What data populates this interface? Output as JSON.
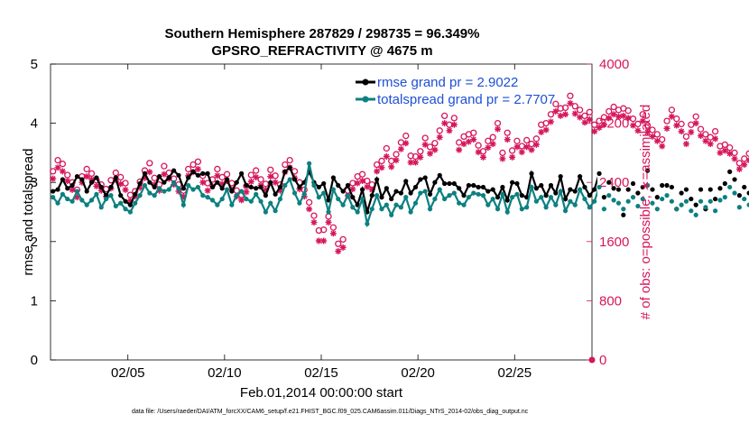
{
  "title_line1": "Southern Hemisphere 287829 / 298735 = 96.349%",
  "title_line2": "GPSRO_REFRACTIVITY @ 4675 m",
  "xlabel": "Feb.01,2014 00:00:00 start",
  "ylabel_left": "rmse and totalspread",
  "ylabel_right": "# of obs: o=possible; ∗=assimilated",
  "footnote": "data file: /Users/raeder/DAI/ATM_forcXX/CAM6_setup/f.e21.FHIST_BGC.f09_025.CAM6assim.011/Diags_NTrS_2014-02/obs_diag_output.nc",
  "colors": {
    "rmse": "#000000",
    "spread": "#0d8080",
    "obs": "#d6165b",
    "legend_text": "#1f4fd6"
  },
  "chart_data": {
    "type": "line",
    "x_unit": "day of Feb 2014",
    "xlim": [
      1.0,
      29.0
    ],
    "x_ticks": [
      5,
      10,
      15,
      20,
      25
    ],
    "x_tick_labels": [
      "02/05",
      "02/10",
      "02/15",
      "02/20",
      "02/25"
    ],
    "ylim_left": [
      0,
      5
    ],
    "y_ticks_left": [
      "0",
      "1",
      "2",
      "3",
      "4",
      "5"
    ],
    "ylim_right": [
      0,
      4000
    ],
    "y_ticks_right": [
      "0",
      "800",
      "1600",
      "2400",
      "3200",
      "4000"
    ],
    "legend": [
      "rmse grand pr = 2.9022",
      "totalspread grand pr = 2.7707"
    ],
    "legend_position": "top-right",
    "series": [
      {
        "name": "rmse grand pr = 2.9022",
        "axis": "left",
        "x_start": 1.125,
        "x_step": 0.25,
        "values": [
          2.85,
          2.88,
          3.05,
          2.9,
          2.95,
          3.1,
          3.05,
          2.85,
          3.0,
          3.08,
          2.92,
          2.78,
          2.92,
          3.08,
          2.78,
          2.68,
          2.62,
          2.8,
          2.98,
          3.15,
          3.0,
          2.92,
          3.1,
          3.0,
          3.08,
          3.2,
          3.12,
          2.9,
          3.08,
          3.18,
          3.12,
          3.15,
          3.15,
          2.92,
          3.0,
          2.9,
          3.05,
          2.85,
          3.0,
          3.15,
          2.95,
          2.92,
          2.9,
          2.92,
          2.78,
          3.0,
          2.8,
          2.92,
          3.18,
          3.25,
          3.05,
          2.92,
          3.0,
          3.18,
          3.0,
          2.92,
          2.98,
          2.7,
          3.08,
          2.95,
          2.85,
          2.95,
          2.75,
          2.62,
          2.88,
          2.5,
          2.78,
          3.05,
          2.75,
          2.9,
          2.72,
          2.85,
          2.82,
          3.02,
          2.82,
          2.92,
          3.05,
          3.08,
          2.8,
          3.0,
          3.12,
          2.98,
          2.98,
          2.98,
          2.9,
          2.78,
          2.95,
          2.95,
          2.92,
          2.92,
          2.85,
          2.88,
          2.75,
          2.92,
          2.7,
          3.0,
          2.98,
          2.78,
          2.75,
          3.15,
          2.9,
          2.95,
          2.78,
          2.95,
          2.82,
          3.1,
          2.72,
          2.88,
          2.85,
          3.1,
          2.92,
          2.78,
          2.88,
          3.15,
          2.75,
          3.0,
          2.9,
          2.88,
          2.45,
          2.88,
          2.98,
          2.82,
          2.92,
          3.2,
          2.88,
          2.75,
          2.95,
          2.95,
          2.92,
          2.55,
          2.82,
          2.88,
          2.72,
          2.62,
          2.88,
          2.55,
          2.88,
          2.72,
          2.9,
          2.98,
          3.18,
          3.05,
          2.78,
          2.92,
          2.82,
          3.22,
          2.92,
          2.8,
          2.9,
          2.82,
          2.85,
          2.92,
          2.6,
          3.05,
          2.75,
          2.88,
          2.72,
          3.22,
          2.8,
          2.88,
          3.15,
          2.7,
          2.9,
          2.75,
          2.55,
          2.95
        ],
        "marker": "dot"
      },
      {
        "name": "totalspread grand pr = 2.7707",
        "axis": "left",
        "x_start": 1.125,
        "x_step": 0.25,
        "values": [
          2.75,
          2.65,
          2.8,
          2.72,
          2.68,
          2.85,
          2.7,
          2.62,
          2.7,
          2.8,
          2.58,
          2.72,
          2.78,
          2.6,
          2.65,
          2.55,
          2.5,
          2.65,
          2.78,
          2.95,
          2.82,
          2.78,
          2.9,
          2.85,
          2.88,
          3.0,
          2.9,
          2.62,
          2.95,
          2.88,
          2.92,
          2.78,
          2.75,
          2.7,
          2.62,
          2.72,
          2.88,
          2.62,
          2.78,
          2.85,
          2.72,
          2.68,
          2.8,
          2.68,
          2.5,
          2.65,
          2.52,
          2.72,
          2.95,
          3.05,
          2.82,
          2.65,
          2.8,
          3.32,
          2.95,
          2.75,
          2.82,
          2.5,
          2.88,
          2.72,
          2.62,
          2.78,
          2.58,
          2.5,
          2.72,
          2.3,
          2.55,
          2.78,
          2.55,
          2.62,
          2.45,
          2.62,
          2.58,
          2.75,
          2.5,
          2.65,
          2.82,
          2.85,
          2.55,
          2.72,
          2.88,
          2.72,
          2.78,
          2.82,
          2.65,
          2.62,
          2.75,
          2.82,
          2.8,
          2.78,
          2.62,
          2.72,
          2.55,
          2.8,
          2.5,
          2.75,
          2.8,
          2.55,
          2.58,
          2.92,
          2.68,
          2.75,
          2.58,
          2.75,
          2.62,
          2.85,
          2.52,
          2.68,
          2.62,
          2.88,
          2.72,
          2.58,
          2.68,
          2.92,
          2.55,
          2.78,
          2.7,
          2.65,
          2.55,
          2.68,
          2.75,
          2.6,
          2.72,
          2.95,
          2.65,
          2.55,
          2.72,
          2.78,
          2.68,
          2.55,
          2.62,
          2.68,
          2.52,
          2.45,
          2.68,
          2.58,
          2.68,
          2.52,
          2.7,
          2.75,
          2.92,
          2.82,
          2.58,
          2.72,
          2.62,
          2.92,
          2.72,
          2.6,
          2.7,
          2.6,
          2.62,
          2.7,
          2.5,
          2.78,
          2.55,
          2.68,
          2.52,
          2.95,
          2.6,
          2.68,
          2.88,
          2.52,
          2.7,
          2.55,
          2.5,
          2.72
        ],
        "marker": "dot"
      },
      {
        "name": "possible",
        "axis": "right",
        "x_start": 1.125,
        "x_step": 0.25,
        "values": [
          2550,
          2700,
          2650,
          2500,
          2400,
          2300,
          2480,
          2580,
          2520,
          2430,
          2370,
          2310,
          2430,
          2530,
          2470,
          2390,
          2230,
          2280,
          2410,
          2560,
          2660,
          2460,
          2370,
          2620,
          2530,
          2450,
          2370,
          2290,
          2580,
          2640,
          2680,
          2490,
          2390,
          2440,
          2580,
          2470,
          2510,
          2390,
          2290,
          2230,
          2350,
          2500,
          2560,
          2440,
          2380,
          2570,
          2490,
          2370,
          2640,
          2700,
          2550,
          2400,
          2300,
          2130,
          1950,
          1750,
          1760,
          1940,
          1790,
          1570,
          1630,
          2290,
          2390,
          2480,
          2510,
          2420,
          2370,
          2640,
          2690,
          2860,
          2690,
          2780,
          2940,
          3030,
          2760,
          2750,
          2820,
          3000,
          2880,
          2930,
          3100,
          3300,
          3180,
          3270,
          2940,
          3020,
          3050,
          3070,
          2900,
          2820,
          2960,
          3010,
          3200,
          2800,
          3070,
          2830,
          2960,
          2890,
          2970,
          2920,
          2990,
          3180,
          3200,
          3320,
          3460,
          3400,
          3410,
          3570,
          3430,
          3380,
          3300,
          3350,
          3180,
          3230,
          3280,
          3360,
          3420,
          3380,
          3400,
          3370,
          3260,
          3190,
          3320,
          3170,
          3110,
          3050,
          2980,
          3230,
          3380,
          3260,
          3190,
          3020,
          3180,
          3290,
          3120,
          3050,
          3010,
          3090,
          2890,
          2910,
          2870,
          2800,
          2660,
          2720,
          2790,
          2990,
          2960,
          3160,
          3100,
          2990,
          2900,
          2760,
          2800,
          2830,
          2780,
          2740,
          2890,
          3080,
          3070,
          3040,
          2880,
          2900,
          2880,
          2950,
          2830,
          3370,
          3310,
          3240,
          3200,
          3440
        ],
        "marker": "o"
      },
      {
        "name": "assimilated",
        "axis": "right",
        "x_start": 1.125,
        "x_step": 0.25,
        "values": [
          2450,
          2600,
          2550,
          2420,
          2300,
          2200,
          2400,
          2480,
          2440,
          2350,
          2290,
          2210,
          2320,
          2430,
          2380,
          2300,
          2150,
          2210,
          2330,
          2460,
          2540,
          2370,
          2290,
          2510,
          2450,
          2370,
          2280,
          2210,
          2490,
          2540,
          2580,
          2400,
          2290,
          2350,
          2490,
          2380,
          2420,
          2300,
          2210,
          2160,
          2270,
          2410,
          2470,
          2360,
          2300,
          2480,
          2400,
          2290,
          2540,
          2600,
          2460,
          2310,
          2210,
          2040,
          1860,
          1610,
          1610,
          1860,
          1710,
          1470,
          1520,
          2220,
          2310,
          2390,
          2420,
          2340,
          2300,
          2550,
          2600,
          2750,
          2610,
          2700,
          2850,
          2930,
          2670,
          2670,
          2740,
          2910,
          2790,
          2840,
          3010,
          3200,
          3100,
          3180,
          2840,
          2920,
          2950,
          2980,
          2810,
          2740,
          2870,
          2920,
          3120,
          2720,
          2980,
          2740,
          2880,
          2810,
          2880,
          2840,
          2910,
          3080,
          3110,
          3220,
          3360,
          3300,
          3320,
          3470,
          3330,
          3280,
          3210,
          3250,
          3090,
          3140,
          3180,
          3270,
          3320,
          3290,
          3300,
          3270,
          3170,
          3100,
          3230,
          3080,
          3020,
          2960,
          2890,
          3130,
          3290,
          3170,
          3090,
          2920,
          3080,
          3200,
          3030,
          2960,
          2920,
          2990,
          2800,
          2830,
          2790,
          2720,
          2580,
          2640,
          2700,
          2900,
          2870,
          3060,
          3010,
          2900,
          2810,
          2680,
          2720,
          2740,
          2700,
          2660,
          2800,
          2990,
          2980,
          2950,
          2790,
          2810,
          2790,
          2860,
          2740,
          3280,
          3220,
          3150,
          3110,
          3340
        ],
        "marker": "*"
      }
    ]
  }
}
